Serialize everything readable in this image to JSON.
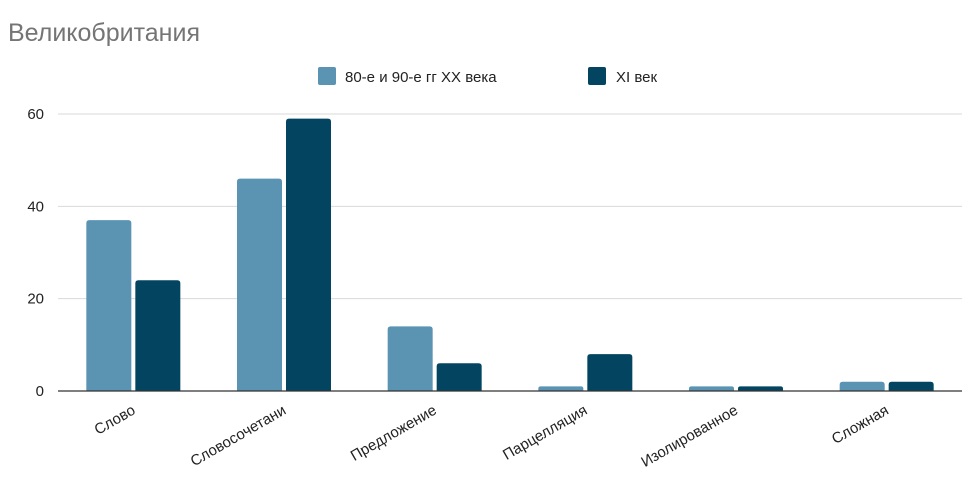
{
  "chart_data": {
    "type": "bar",
    "title": "Великобритания",
    "xlabel": "",
    "ylabel": "",
    "ylim": [
      0,
      60
    ],
    "yticks": [
      0,
      20,
      40,
      60
    ],
    "grid": true,
    "legend_position": "top",
    "categories": [
      "Слово",
      "Словосочетани",
      "Предложение",
      "Парцелляция",
      "Изолированное",
      "Сложная"
    ],
    "series": [
      {
        "name": "80-е и 90-е гг XX века",
        "color": "#5b93b3",
        "values": [
          37,
          46,
          14,
          1,
          1,
          2
        ]
      },
      {
        "name": "XI век",
        "color": "#034561",
        "values": [
          24,
          59,
          6,
          8,
          1,
          2
        ]
      }
    ]
  }
}
